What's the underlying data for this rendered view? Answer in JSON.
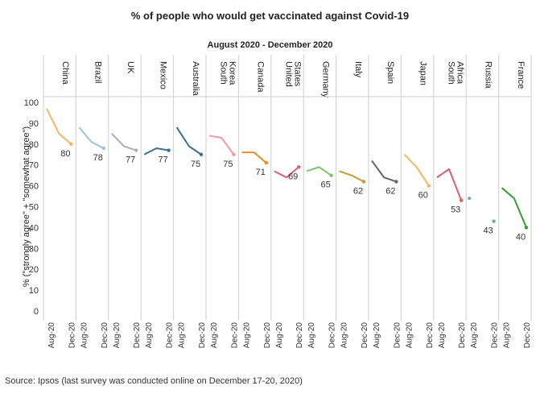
{
  "title": "% of people who would get vaccinated against Covid-19",
  "subtitle": "August 2020 - December 2020",
  "source": "Source: Ipsos (last survey was conducted online on December 17-20, 2020)",
  "chart_data": {
    "type": "line",
    "title": "% of people who would get vaccinated against Covid-19",
    "subtitle": "August 2020 - December 2020",
    "ylabel": "% (\"strongly agree\" + \"somewhat agree\")",
    "xlabel": "",
    "ylim": [
      0,
      100
    ],
    "yticks": [
      0,
      10,
      20,
      30,
      40,
      50,
      60,
      70,
      80,
      90,
      100
    ],
    "x_tick_labels": [
      "Aug-20",
      "Dec-20"
    ],
    "grid": false,
    "panels": [
      {
        "country": [
          "China"
        ],
        "color": "#f4b662",
        "values": [
          97,
          85,
          80
        ],
        "end_label": "80"
      },
      {
        "country": [
          "Brazil"
        ],
        "color": "#9ec3d6",
        "values": [
          88,
          81,
          78
        ],
        "end_label": "78"
      },
      {
        "country": [
          "UK"
        ],
        "color": "#aeaeae",
        "values": [
          85,
          79,
          77
        ],
        "end_label": "77"
      },
      {
        "country": [
          "Mexico"
        ],
        "color": "#3a6f8f",
        "values": [
          75,
          78,
          77
        ],
        "end_label": "77"
      },
      {
        "country": [
          "Australia"
        ],
        "color": "#3a6f8f",
        "values": [
          88,
          79,
          75
        ],
        "end_label": "75"
      },
      {
        "country": [
          "South",
          "Korea"
        ],
        "color": "#f29aa0",
        "values": [
          84,
          83,
          75
        ],
        "end_label": "75"
      },
      {
        "country": [
          "Canada"
        ],
        "color": "#f0892a",
        "values": [
          76,
          76,
          71
        ],
        "end_label": "71"
      },
      {
        "country": [
          "United",
          "States"
        ],
        "color": "#d9616e",
        "values": [
          67,
          64,
          69
        ],
        "end_label": "69"
      },
      {
        "country": [
          "Germany"
        ],
        "color": "#7cc36b",
        "values": [
          67,
          69,
          65
        ],
        "end_label": "65"
      },
      {
        "country": [
          "Italy"
        ],
        "color": "#c99a33",
        "values": [
          67,
          65,
          62
        ],
        "end_label": "62"
      },
      {
        "country": [
          "Spain"
        ],
        "color": "#666666",
        "values": [
          72,
          64,
          62
        ],
        "end_label": "62"
      },
      {
        "country": [
          "Japan"
        ],
        "color": "#f4b662",
        "values": [
          75,
          69,
          60
        ],
        "end_label": "60"
      },
      {
        "country": [
          "South",
          "Africa"
        ],
        "color": "#d9616e",
        "values": [
          64,
          68,
          53
        ],
        "end_label": "53"
      },
      {
        "country": [
          "Russia"
        ],
        "color": "#6fa7b8",
        "values": [
          54,
          null,
          43
        ],
        "end_label": "43"
      },
      {
        "country": [
          "France"
        ],
        "color": "#3a9a3a",
        "values": [
          59,
          54,
          40
        ],
        "end_label": "40"
      }
    ]
  }
}
